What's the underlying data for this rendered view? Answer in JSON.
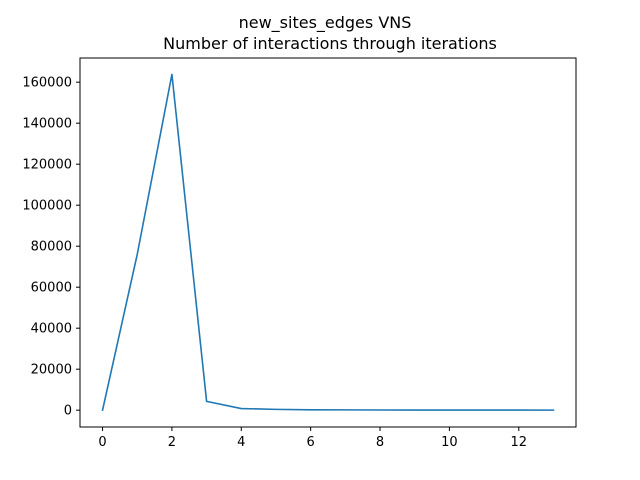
{
  "chart_data": {
    "type": "line",
    "title": "new_sites_edges VNS",
    "subtitle": "Number of interactions through iterations",
    "xlabel": "",
    "ylabel": "",
    "grid": false,
    "xlim": [
      -0.65,
      13.65
    ],
    "ylim": [
      -8200,
      171800
    ],
    "xticks": [
      0,
      2,
      4,
      6,
      8,
      10,
      12
    ],
    "yticks": [
      0,
      20000,
      40000,
      60000,
      80000,
      100000,
      120000,
      140000,
      160000
    ],
    "series": [
      {
        "color": "#1f77b4",
        "x": [
          0,
          1,
          2,
          3,
          4,
          5,
          6,
          7,
          8,
          9,
          10,
          11,
          12,
          13
        ],
        "y": [
          0,
          76000,
          163800,
          4300,
          800,
          400,
          200,
          150,
          100,
          80,
          60,
          50,
          40,
          30
        ]
      }
    ]
  }
}
